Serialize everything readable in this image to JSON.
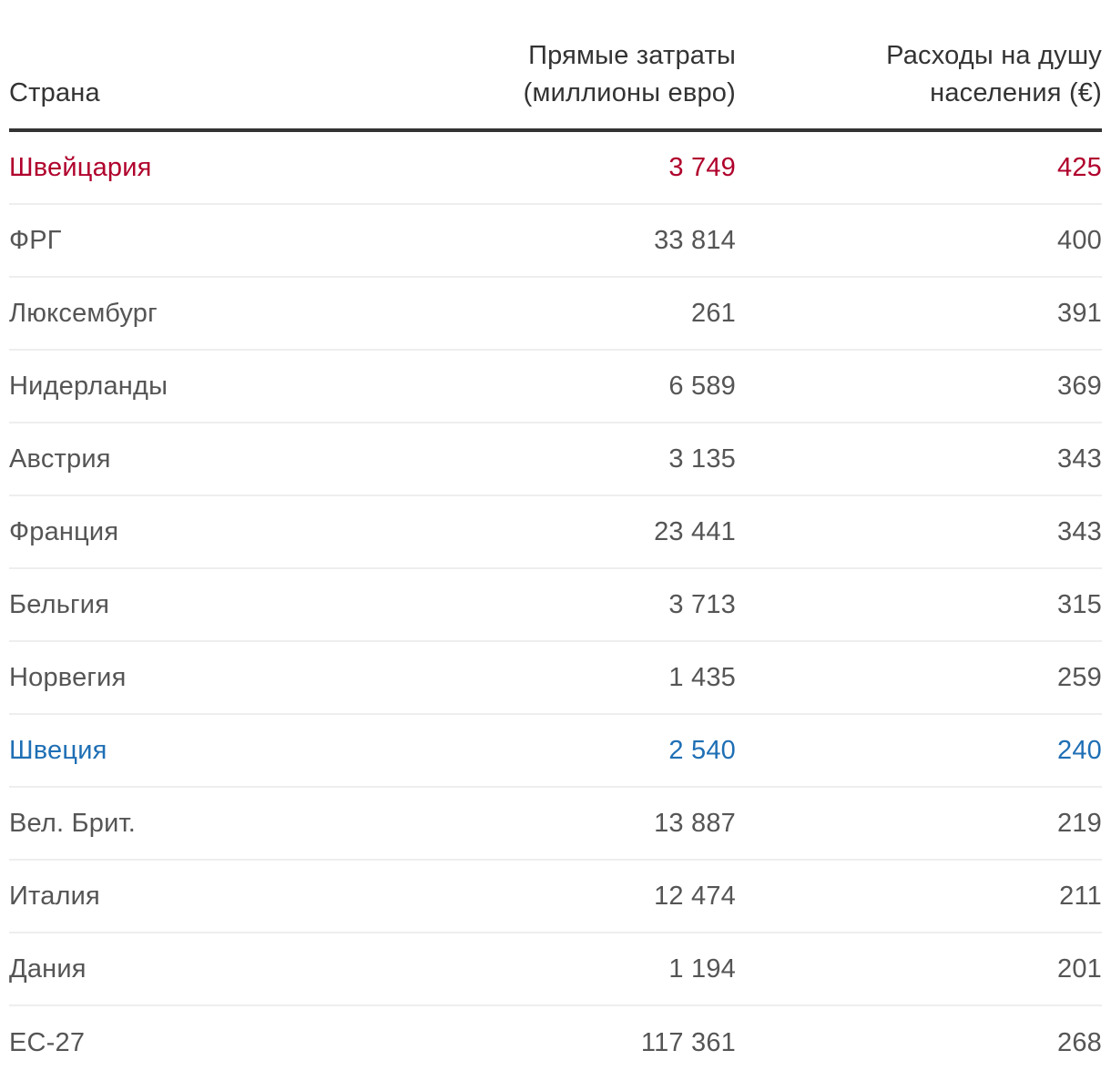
{
  "table": {
    "headers": {
      "country": "Страна",
      "cost_line1": "Прямые затраты",
      "cost_line2": "(миллионы евро)",
      "percap_line1": "Расходы на душу",
      "percap_line2": "населения (€)"
    },
    "highlight_colors": {
      "red": "#b0002c",
      "blue": "#1f6fb5"
    },
    "rows": [
      {
        "country": "Швейцария",
        "cost": "3 749",
        "per_capita": "425",
        "highlight": "red"
      },
      {
        "country": "ФРГ",
        "cost": "33 814",
        "per_capita": "400",
        "highlight": ""
      },
      {
        "country": "Люксембург",
        "cost": "261",
        "per_capita": "391",
        "highlight": ""
      },
      {
        "country": "Нидерланды",
        "cost": "6 589",
        "per_capita": "369",
        "highlight": ""
      },
      {
        "country": "Австрия",
        "cost": "3 135",
        "per_capita": "343",
        "highlight": ""
      },
      {
        "country": "Франция",
        "cost": "23 441",
        "per_capita": "343",
        "highlight": ""
      },
      {
        "country": "Бельгия",
        "cost": "3 713",
        "per_capita": "315",
        "highlight": ""
      },
      {
        "country": "Норвегия",
        "cost": "1 435",
        "per_capita": "259",
        "highlight": ""
      },
      {
        "country": "Швеция",
        "cost": "2 540",
        "per_capita": "240",
        "highlight": "blue"
      },
      {
        "country": "Вел. Брит.",
        "cost": "13 887",
        "per_capita": "219",
        "highlight": ""
      },
      {
        "country": "Италия",
        "cost": "12 474",
        "per_capita": "211",
        "highlight": ""
      },
      {
        "country": "Дания",
        "cost": "1 194",
        "per_capita": "201",
        "highlight": ""
      },
      {
        "country": "ЕС-27",
        "cost": "117 361",
        "per_capita": "268",
        "highlight": ""
      }
    ]
  }
}
